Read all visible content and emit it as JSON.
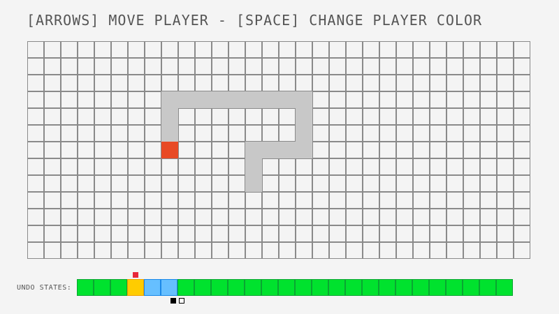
{
  "instructions": "[ARROWS] MOVE PLAYER - [SPACE] CHANGE PLAYER COLOR",
  "board": {
    "columns": 30,
    "rows": 13,
    "walls": [
      [
        3,
        8
      ],
      [
        3,
        9
      ],
      [
        3,
        10
      ],
      [
        3,
        11
      ],
      [
        3,
        12
      ],
      [
        3,
        13
      ],
      [
        3,
        14
      ],
      [
        3,
        15
      ],
      [
        3,
        16
      ],
      [
        4,
        8
      ],
      [
        4,
        16
      ],
      [
        5,
        8
      ],
      [
        5,
        16
      ],
      [
        6,
        13
      ],
      [
        6,
        14
      ],
      [
        6,
        15
      ],
      [
        6,
        16
      ],
      [
        7,
        13
      ],
      [
        8,
        13
      ]
    ],
    "player": {
      "row": 6,
      "col": 8,
      "color": "#e84a25"
    },
    "wall_color": "#c8c8c8"
  },
  "undo": {
    "label": "UNDO STATES:",
    "states": [
      "green",
      "green",
      "green",
      "yellow",
      "blue",
      "blue",
      "green",
      "green",
      "green",
      "green",
      "green",
      "green",
      "green",
      "green",
      "green",
      "green",
      "green",
      "green",
      "green",
      "green",
      "green",
      "green",
      "green",
      "green",
      "green",
      "green"
    ],
    "current_index": 3,
    "colors": {
      "green": {
        "fill": "#00e22e",
        "border": "#0aa532"
      },
      "yellow": {
        "fill": "#ffcc00",
        "border": "#f0a000"
      },
      "blue": {
        "fill": "#66bfff",
        "border": "#1a88e8"
      }
    },
    "marker_color": "#e8263a"
  }
}
